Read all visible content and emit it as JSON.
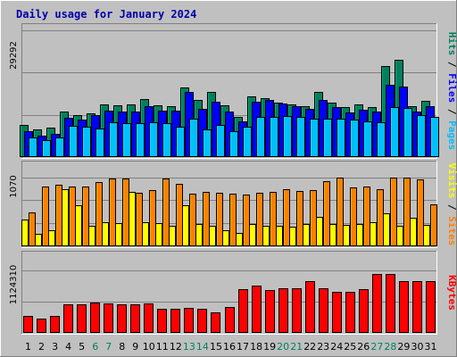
{
  "chart_data": {
    "type": "bar",
    "title": "Daily usage for January 2024",
    "categories": [
      "1",
      "2",
      "3",
      "4",
      "5",
      "6",
      "7",
      "8",
      "9",
      "10",
      "11",
      "12",
      "13",
      "14",
      "15",
      "16",
      "17",
      "18",
      "19",
      "20",
      "21",
      "22",
      "23",
      "24",
      "25",
      "26",
      "27",
      "28",
      "29",
      "30",
      "31"
    ],
    "weekend_days": [
      "6",
      "7",
      "13",
      "14",
      "20",
      "21",
      "27",
      "28"
    ],
    "panels": {
      "top": {
        "ytick": "29292",
        "ymax": 29292,
        "axis_labels": [
          "Pages",
          "Files",
          "Hits"
        ],
        "series": [
          {
            "name": "Hits",
            "color": "#00805c",
            "values": [
              9300,
              8100,
              8600,
              13200,
              12200,
              12800,
              15400,
              15100,
              15300,
              16900,
              15200,
              14800,
              20200,
              16600,
              19000,
              15000,
              11700,
              17800,
              17300,
              16000,
              15500,
              14900,
              19000,
              15900,
              14600,
              15300,
              14500,
              26500,
              28500,
              14900,
              16500
            ]
          },
          {
            "name": "Files",
            "color": "#0000ff",
            "values": [
              7600,
              6300,
              6900,
              11500,
              11000,
              12200,
              13500,
              13200,
              13200,
              14800,
              13600,
              13600,
              18900,
              14200,
              16200,
              13200,
              10400,
              16100,
              16600,
              15600,
              14900,
              14100,
              16700,
              14500,
              13000,
              13800,
              13300,
              21000,
              20600,
              13400,
              14900
            ]
          },
          {
            "name": "Pages",
            "color": "#00bfff",
            "values": [
              5700,
              4900,
              5700,
              9000,
              8900,
              8300,
              10200,
              9800,
              9900,
              10200,
              10000,
              8900,
              11200,
              8100,
              9400,
              7500,
              8900,
              11600,
              11800,
              12100,
              11700,
              11300,
              11300,
              11200,
              11000,
              10400,
              10100,
              14500,
              14300,
              12300,
              11700
            ]
          }
        ]
      },
      "middle": {
        "ytick": "1070",
        "ymax": 1070,
        "axis_labels": [
          "Sites",
          "Visits"
        ],
        "series": [
          {
            "name": "Visits",
            "color": "#ffff00",
            "values": [
              395,
              180,
              240,
              830,
              595,
              300,
              350,
              340,
              795,
              350,
              340,
              300,
              605,
              330,
              300,
              230,
              200,
              330,
              300,
              300,
              290,
              330,
              430,
              330,
              310,
              330,
              350,
              480,
              300,
              420,
              310
            ]
          },
          {
            "name": "Sites",
            "color": "#ff8000",
            "values": [
              500,
              880,
              900,
              870,
              880,
              940,
              990,
              990,
              780,
              820,
              990,
              920,
              770,
              800,
              790,
              770,
              760,
              790,
              800,
              830,
              810,
              820,
              950,
              1010,
              860,
              880,
              830,
              1010,
              1010,
              980,
              620
            ]
          }
        ]
      },
      "bottom": {
        "ytick": "1124310",
        "ymax": 1124310,
        "axis_labels": [
          "KBytes"
        ],
        "series": [
          {
            "name": "KBytes",
            "color": "#ff0000",
            "values": [
              390000,
              340000,
              400000,
              660000,
              660000,
              700000,
              690000,
              660000,
              650000,
              680000,
              560000,
              550000,
              570000,
              550000,
              480000,
              590000,
              1010000,
              1090000,
              990000,
              1030000,
              1030000,
              1190000,
              1030000,
              940000,
              950000,
              1010000,
              1370000,
              1370000,
              1190000,
              1190000,
              1190000
            ]
          }
        ]
      }
    }
  }
}
